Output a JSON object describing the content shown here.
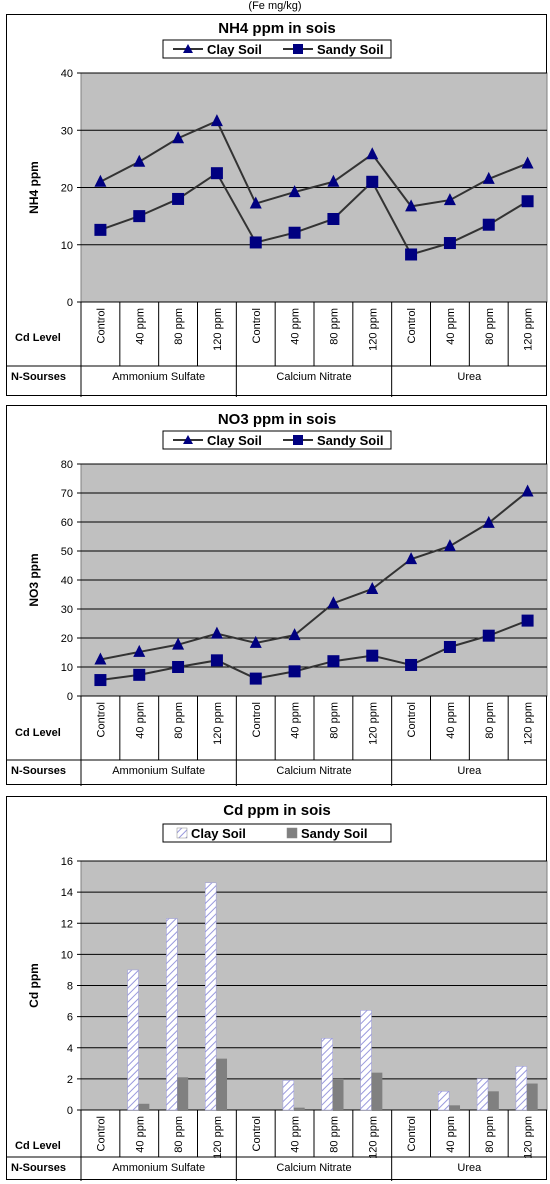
{
  "caption": "(Fe mg/kg)",
  "chart_data": [
    {
      "type": "line",
      "title": "NH4 ppm in sois",
      "ylabel": "NH4 ppm",
      "ylim": [
        0,
        40
      ],
      "yticks": [
        0,
        10,
        20,
        30,
        40
      ],
      "grid": true,
      "legend": "top-center",
      "row_label_cd": "Cd Level",
      "row_label_n": "N-Sourses",
      "categories": [
        "Control",
        "40 ppm",
        "80 ppm",
        "120 ppm",
        "Control",
        "40 ppm",
        "80 ppm",
        "120 ppm",
        "Control",
        "40 ppm",
        "80 ppm",
        "120 ppm"
      ],
      "groups": [
        "Ammonium Sulfate",
        "Calcium Nitrate",
        "Urea"
      ],
      "series": [
        {
          "name": "Clay Soil",
          "marker": "triangle",
          "values": [
            21.0,
            24.5,
            28.6,
            31.6,
            17.2,
            19.2,
            21.0,
            25.8,
            16.7,
            17.8,
            21.5,
            24.2
          ]
        },
        {
          "name": "Sandy Soil",
          "marker": "square",
          "values": [
            12.6,
            15.0,
            18.0,
            22.5,
            10.4,
            12.1,
            14.5,
            21.0,
            8.3,
            10.3,
            13.5,
            17.6
          ]
        }
      ]
    },
    {
      "type": "line",
      "title": "NO3 ppm in sois",
      "ylabel": "NO3 ppm",
      "ylim": [
        0,
        80
      ],
      "yticks": [
        0,
        10,
        20,
        30,
        40,
        50,
        60,
        70,
        80
      ],
      "grid": true,
      "legend": "top-center",
      "row_label_cd": "Cd Level",
      "row_label_n": "N-Sourses",
      "categories": [
        "Control",
        "40 ppm",
        "80 ppm",
        "120 ppm",
        "Control",
        "40 ppm",
        "80 ppm",
        "120 ppm",
        "Control",
        "40 ppm",
        "80 ppm",
        "120 ppm"
      ],
      "groups": [
        "Ammonium Sulfate",
        "Calcium Nitrate",
        "Urea"
      ],
      "series": [
        {
          "name": "Clay Soil",
          "marker": "triangle",
          "values": [
            12.6,
            15.2,
            17.7,
            21.5,
            18.3,
            21.0,
            32.0,
            36.9,
            47.2,
            51.7,
            59.7,
            70.5
          ]
        },
        {
          "name": "Sandy Soil",
          "marker": "square",
          "values": [
            5.5,
            7.3,
            10.0,
            12.3,
            6.0,
            8.5,
            12.0,
            13.9,
            10.7,
            16.9,
            20.8,
            26.0
          ]
        }
      ]
    },
    {
      "type": "bar",
      "title": "Cd ppm in sois",
      "ylabel": "Cd ppm",
      "ylim": [
        0,
        16
      ],
      "yticks": [
        0,
        2,
        4,
        6,
        8,
        10,
        12,
        14,
        16
      ],
      "grid": true,
      "legend": "top-center",
      "row_label_cd": "Cd Level",
      "row_label_n": "N-Sourses",
      "categories": [
        "Control",
        "40 ppm",
        "80 ppm",
        "120 ppm",
        "Control",
        "40 ppm",
        "80 ppm",
        "120 ppm",
        "Control",
        "40 ppm",
        "80 ppm",
        "120 ppm"
      ],
      "groups": [
        "Ammonium Sulfate",
        "Calcium Nitrate",
        "Urea"
      ],
      "series": [
        {
          "name": "Clay Soil",
          "pattern": "hatched",
          "values": [
            0,
            9.0,
            12.3,
            14.6,
            0,
            1.9,
            4.6,
            6.4,
            0,
            1.2,
            2.0,
            2.8
          ]
        },
        {
          "name": "Sandy Soil",
          "pattern": "solid",
          "values": [
            0,
            0.4,
            2.1,
            3.3,
            0,
            0.15,
            2.0,
            2.4,
            0,
            0.3,
            1.2,
            1.7
          ]
        }
      ]
    }
  ]
}
